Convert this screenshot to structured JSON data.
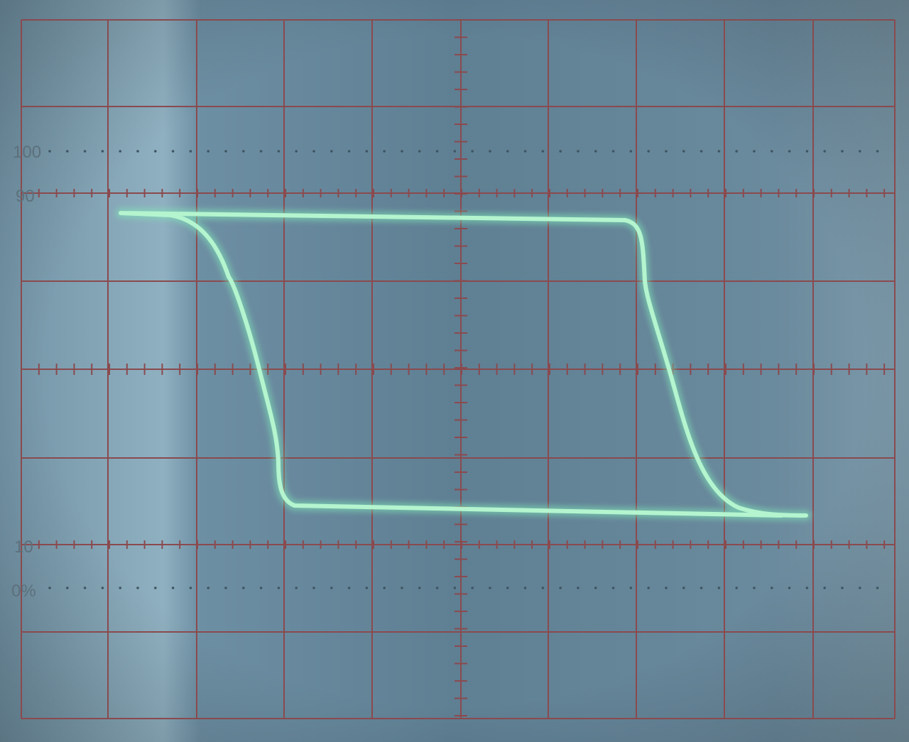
{
  "graticule_labels": {
    "level_100": "100",
    "level_90": "90",
    "level_10": "10",
    "level_0": "0%"
  },
  "colors": {
    "screen": "#66889c",
    "grid": "#8a4a4e",
    "trace": "#b4f5cf",
    "trace_glow": "#7fe8b8",
    "label": "#5d707c"
  },
  "trace": {
    "description_free": true,
    "top_level_pct": 94.5,
    "bottom_level_pct": 13.5
  }
}
